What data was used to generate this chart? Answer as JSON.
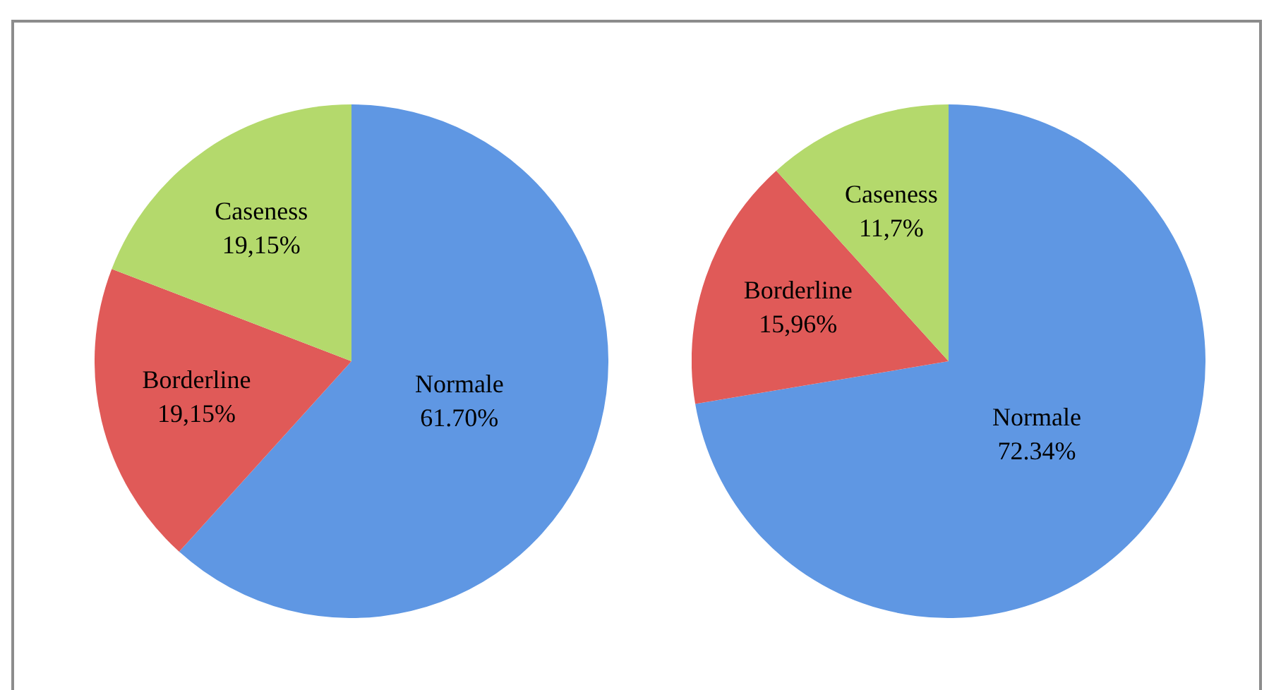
{
  "chart_data": [
    {
      "type": "pie",
      "categories": [
        "Normale",
        "Borderline",
        "Caseness"
      ],
      "values": [
        61.7,
        19.15,
        19.15
      ],
      "colors": [
        "#5f97e3",
        "#e05a58",
        "#b4d96c"
      ],
      "value_labels": [
        "61.70%",
        "19,15%",
        "19,15%"
      ],
      "legend": false
    },
    {
      "type": "pie",
      "categories": [
        "Normale",
        "Borderline",
        "Caseness"
      ],
      "values": [
        72.34,
        15.96,
        11.7
      ],
      "colors": [
        "#5f97e3",
        "#e05a58",
        "#b4d96c"
      ],
      "value_labels": [
        "72.34%",
        "15,96%",
        "11,7%"
      ],
      "legend": false
    }
  ]
}
